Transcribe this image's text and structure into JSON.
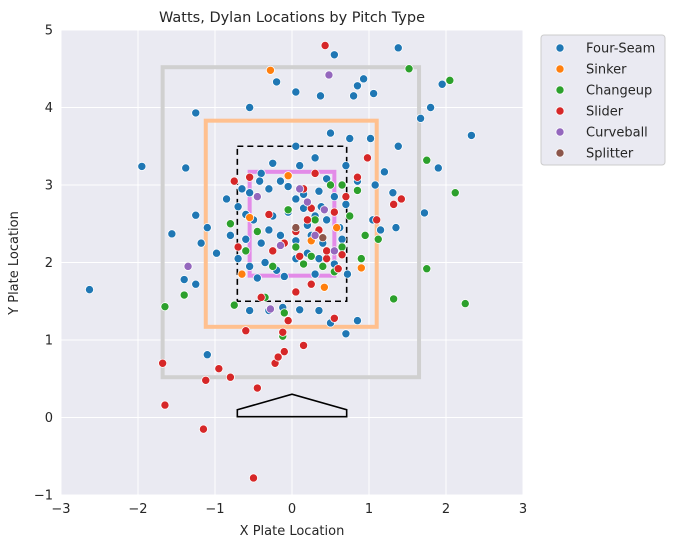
{
  "chart_data": {
    "type": "scatter",
    "title": "Watts, Dylan Locations by Pitch Type",
    "xlabel": "X Plate Location",
    "ylabel": "Y Plate Location",
    "xlim": [
      -3,
      3
    ],
    "ylim": [
      -1,
      5
    ],
    "xticks": [
      -3,
      -2,
      -1,
      0,
      1,
      2,
      3
    ],
    "yticks": [
      -1,
      0,
      1,
      2,
      3,
      4,
      5
    ],
    "grid": true,
    "legend": "outside-top-right",
    "series": [
      {
        "name": "Four-Seam",
        "color": "#1f77b4",
        "points": [
          [
            1.38,
            4.77
          ],
          [
            -1.95,
            3.24
          ],
          [
            -2.63,
            1.65
          ],
          [
            -0.55,
            4.0
          ],
          [
            0.05,
            4.2
          ],
          [
            0.37,
            4.15
          ],
          [
            0.85,
            4.28
          ],
          [
            0.93,
            4.37
          ],
          [
            0.8,
            4.15
          ],
          [
            1.06,
            4.18
          ],
          [
            1.8,
            4.0
          ],
          [
            1.95,
            4.3
          ],
          [
            1.9,
            3.22
          ],
          [
            2.33,
            3.64
          ],
          [
            1.67,
            3.86
          ],
          [
            1.38,
            3.5
          ],
          [
            1.2,
            3.17
          ],
          [
            1.08,
            3.0
          ],
          [
            1.31,
            2.9
          ],
          [
            1.72,
            2.64
          ],
          [
            1.35,
            2.45
          ],
          [
            -1.25,
            3.93
          ],
          [
            -1.38,
            3.22
          ],
          [
            -1.25,
            2.61
          ],
          [
            -1.1,
            2.45
          ],
          [
            -1.56,
            2.37
          ],
          [
            -1.18,
            2.25
          ],
          [
            -0.98,
            2.12
          ],
          [
            -1.4,
            1.78
          ],
          [
            -1.25,
            1.72
          ],
          [
            -1.1,
            0.81
          ],
          [
            -0.55,
            1.38
          ],
          [
            -0.3,
            1.38
          ],
          [
            -0.12,
            1.42
          ],
          [
            0.1,
            1.39
          ],
          [
            0.35,
            1.38
          ],
          [
            0.7,
            1.08
          ],
          [
            0.5,
            1.22
          ],
          [
            0.85,
            1.25
          ],
          [
            0.55,
            4.68
          ],
          [
            -0.2,
            4.33
          ],
          [
            0.5,
            3.67
          ],
          [
            0.75,
            3.6
          ],
          [
            1.02,
            3.6
          ],
          [
            0.05,
            3.5
          ],
          [
            -0.25,
            3.28
          ],
          [
            -0.4,
            3.15
          ],
          [
            0.1,
            3.25
          ],
          [
            0.3,
            3.35
          ],
          [
            0.7,
            3.25
          ],
          [
            0.85,
            3.05
          ],
          [
            -0.65,
            2.95
          ],
          [
            -0.55,
            2.9
          ],
          [
            -0.3,
            2.95
          ],
          [
            -0.05,
            2.98
          ],
          [
            0.15,
            2.88
          ],
          [
            0.35,
            2.92
          ],
          [
            0.55,
            2.85
          ],
          [
            0.7,
            2.75
          ],
          [
            -0.7,
            2.72
          ],
          [
            -0.5,
            2.55
          ],
          [
            -0.25,
            2.6
          ],
          [
            -0.05,
            2.65
          ],
          [
            0.15,
            2.7
          ],
          [
            0.3,
            2.6
          ],
          [
            0.45,
            2.55
          ],
          [
            0.62,
            2.45
          ],
          [
            -0.8,
            2.35
          ],
          [
            -0.6,
            2.3
          ],
          [
            -0.4,
            2.25
          ],
          [
            -0.15,
            2.35
          ],
          [
            0.05,
            2.28
          ],
          [
            0.25,
            2.35
          ],
          [
            0.4,
            2.25
          ],
          [
            0.65,
            2.3
          ],
          [
            -0.7,
            2.05
          ],
          [
            -0.55,
            1.95
          ],
          [
            -0.35,
            2.0
          ],
          [
            -0.2,
            1.9
          ],
          [
            0.05,
            2.05
          ],
          [
            0.2,
            2.12
          ],
          [
            0.35,
            2.05
          ],
          [
            0.55,
            1.98
          ],
          [
            0.72,
            1.85
          ],
          [
            -0.45,
            1.8
          ],
          [
            -0.1,
            1.82
          ],
          [
            0.3,
            1.85
          ],
          [
            1.05,
            2.55
          ],
          [
            1.15,
            2.42
          ],
          [
            -0.85,
            2.82
          ],
          [
            -0.15,
            3.05
          ],
          [
            0.45,
            3.08
          ],
          [
            -0.3,
            2.42
          ],
          [
            0.2,
            2.48
          ],
          [
            -0.6,
            2.62
          ],
          [
            0.05,
            2.82
          ],
          [
            0.38,
            2.72
          ],
          [
            -0.42,
            3.05
          ]
        ]
      },
      {
        "name": "Sinker",
        "color": "#ff7f0e",
        "points": [
          [
            -0.28,
            4.48
          ],
          [
            -0.05,
            3.12
          ],
          [
            0.9,
            1.93
          ],
          [
            0.42,
            1.68
          ],
          [
            -0.55,
            2.58
          ],
          [
            0.58,
            2.45
          ],
          [
            -0.65,
            1.85
          ],
          [
            0.25,
            2.28
          ]
        ]
      },
      {
        "name": "Changeup",
        "color": "#2ca02c",
        "points": [
          [
            1.52,
            4.5
          ],
          [
            2.05,
            4.35
          ],
          [
            1.75,
            3.32
          ],
          [
            2.12,
            2.9
          ],
          [
            1.75,
            1.92
          ],
          [
            1.32,
            1.53
          ],
          [
            2.25,
            1.47
          ],
          [
            -1.65,
            1.43
          ],
          [
            -1.4,
            1.58
          ],
          [
            -0.35,
            1.55
          ],
          [
            -0.1,
            1.35
          ],
          [
            -0.75,
            1.45
          ],
          [
            -0.12,
            1.05
          ],
          [
            0.85,
            2.93
          ],
          [
            1.12,
            2.3
          ],
          [
            0.9,
            2.05
          ],
          [
            0.95,
            2.35
          ],
          [
            0.25,
            2.08
          ],
          [
            0.05,
            2.2
          ],
          [
            -0.25,
            1.95
          ],
          [
            0.4,
            1.95
          ],
          [
            0.55,
            1.88
          ],
          [
            0.65,
            3.0
          ],
          [
            0.5,
            3.0
          ],
          [
            -0.05,
            2.68
          ],
          [
            0.3,
            2.55
          ],
          [
            -0.45,
            2.4
          ],
          [
            -0.6,
            2.15
          ],
          [
            0.15,
            1.98
          ],
          [
            0.75,
            2.6
          ],
          [
            -0.8,
            2.5
          ],
          [
            0.65,
            2.2
          ]
        ]
      },
      {
        "name": "Slider",
        "color": "#d62728",
        "points": [
          [
            0.43,
            4.8
          ],
          [
            1.1,
            2.55
          ],
          [
            1.42,
            2.82
          ],
          [
            1.32,
            2.75
          ],
          [
            0.98,
            3.35
          ],
          [
            0.85,
            3.1
          ],
          [
            -1.35,
            1.95
          ],
          [
            -0.6,
            1.12
          ],
          [
            -0.8,
            0.52
          ],
          [
            -0.7,
            2.2
          ],
          [
            -0.95,
            0.63
          ],
          [
            -1.12,
            0.48
          ],
          [
            -1.68,
            0.7
          ],
          [
            -1.65,
            0.16
          ],
          [
            -1.15,
            -0.15
          ],
          [
            -0.45,
            0.38
          ],
          [
            -0.22,
            0.7
          ],
          [
            -0.18,
            0.78
          ],
          [
            -0.1,
            0.85
          ],
          [
            0.15,
            0.93
          ],
          [
            -0.12,
            1.1
          ],
          [
            -0.05,
            1.25
          ],
          [
            0.55,
            1.28
          ],
          [
            0.05,
            1.62
          ],
          [
            -0.4,
            1.55
          ],
          [
            0.25,
            1.72
          ],
          [
            -0.5,
            -0.78
          ],
          [
            0.6,
            1.92
          ],
          [
            0.45,
            2.05
          ],
          [
            -0.3,
            2.62
          ],
          [
            0.05,
            2.4
          ],
          [
            0.25,
            2.7
          ],
          [
            0.35,
            2.42
          ],
          [
            0.55,
            2.65
          ],
          [
            -0.1,
            2.25
          ],
          [
            0.15,
            2.95
          ],
          [
            0.65,
            2.1
          ],
          [
            -0.75,
            3.05
          ],
          [
            -0.55,
            3.1
          ],
          [
            0.45,
            2.15
          ],
          [
            0.1,
            2.08
          ],
          [
            -0.25,
            2.15
          ],
          [
            0.3,
            3.15
          ],
          [
            0.2,
            2.55
          ],
          [
            0.7,
            2.85
          ]
        ]
      },
      {
        "name": "Curveball",
        "color": "#9467bd",
        "points": [
          [
            0.48,
            4.42
          ],
          [
            -1.35,
            1.95
          ],
          [
            -0.28,
            1.4
          ],
          [
            0.2,
            2.78
          ],
          [
            0.42,
            2.68
          ],
          [
            -0.15,
            2.22
          ],
          [
            0.3,
            2.35
          ],
          [
            0.55,
            2.15
          ],
          [
            -0.45,
            2.85
          ],
          [
            0.1,
            2.95
          ]
        ]
      },
      {
        "name": "Splitter",
        "color": "#8c564b",
        "points": [
          [
            0.05,
            2.45
          ],
          [
            0.4,
            2.32
          ]
        ]
      }
    ],
    "zones": [
      {
        "name": "outer",
        "color": "#d0d0d0",
        "x": [
          -1.68,
          1.65
        ],
        "y": [
          0.52,
          4.52
        ]
      },
      {
        "name": "middle",
        "color": "#ffc08f",
        "x": [
          -1.12,
          1.1
        ],
        "y": [
          1.17,
          3.83
        ]
      },
      {
        "name": "strike-zone",
        "color": "#000000",
        "dashed": true,
        "x": [
          -0.71,
          0.71
        ],
        "y": [
          1.5,
          3.5
        ]
      },
      {
        "name": "inner",
        "color": "#e38be8",
        "x": [
          -0.55,
          0.55
        ],
        "y": [
          1.83,
          3.17
        ]
      }
    ],
    "plate": [
      [
        -0.71,
        0.1
      ],
      [
        0,
        0.3
      ],
      [
        0.71,
        0.1
      ],
      [
        0.71,
        0.01
      ],
      [
        -0.71,
        0.01
      ]
    ]
  }
}
